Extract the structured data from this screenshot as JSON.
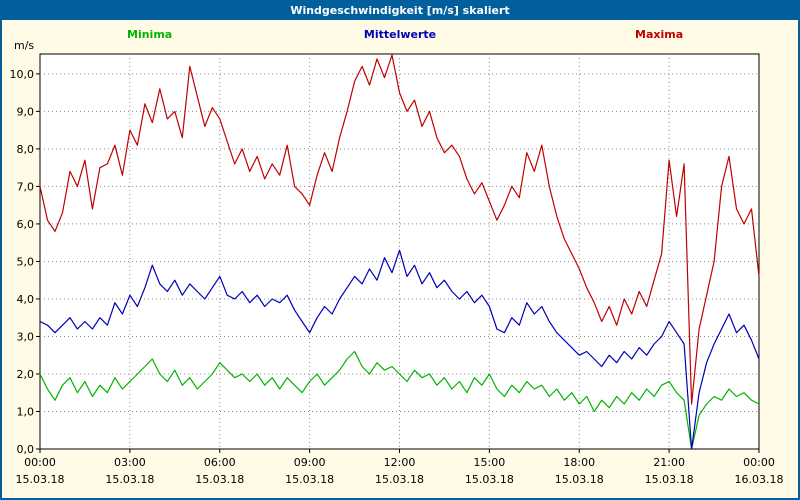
{
  "window": {
    "title": "Windgeschwindigkeit [m/s] skaliert"
  },
  "unit_label": "m/s",
  "colors": {
    "header_bg": "#005f9c",
    "page_bg": "#fffbe6",
    "plot_bg": "#ffffff",
    "grid": "#8c8c8c",
    "axis": "#000000",
    "minima": "#00b400",
    "mittelwerte": "#0000b8",
    "maxima": "#c00000"
  },
  "chart_data": {
    "type": "line",
    "title": "Windgeschwindigkeit [m/s] skaliert",
    "ylabel": "m/s",
    "xlabel": "",
    "ylim": [
      0,
      10.53
    ],
    "x_range_hours": [
      0,
      24
    ],
    "x_step_hours": 0.25,
    "grid": "dotted",
    "legend_position": "top",
    "y_ticks": {
      "values": [
        0,
        1,
        2,
        3,
        4,
        5,
        6,
        7,
        8,
        9,
        10
      ],
      "labels": [
        "0,0",
        "1,0",
        "2,0",
        "3,0",
        "4,0",
        "5,0",
        "6,0",
        "7,0",
        "8,0",
        "9,0",
        "10,0"
      ]
    },
    "x_ticks": [
      {
        "hour": 0,
        "time": "00:00",
        "date": "15.03.18"
      },
      {
        "hour": 3,
        "time": "03:00",
        "date": "15.03.18"
      },
      {
        "hour": 6,
        "time": "06:00",
        "date": "15.03.18"
      },
      {
        "hour": 9,
        "time": "09:00",
        "date": "15.03.18"
      },
      {
        "hour": 12,
        "time": "12:00",
        "date": "15.03.18"
      },
      {
        "hour": 15,
        "time": "15:00",
        "date": "15.03.18"
      },
      {
        "hour": 18,
        "time": "18:00",
        "date": "15.03.18"
      },
      {
        "hour": 21,
        "time": "21:00",
        "date": "15.03.18"
      },
      {
        "hour": 24,
        "time": "00:00",
        "date": "16.03.18"
      }
    ],
    "series": [
      {
        "name": "Minima",
        "color": "#00b400",
        "values": [
          2.0,
          1.6,
          1.3,
          1.7,
          1.9,
          1.5,
          1.8,
          1.4,
          1.7,
          1.5,
          1.9,
          1.6,
          1.8,
          2.0,
          2.2,
          2.4,
          2.0,
          1.8,
          2.1,
          1.7,
          1.9,
          1.6,
          1.8,
          2.0,
          2.3,
          2.1,
          1.9,
          2.0,
          1.8,
          2.0,
          1.7,
          1.9,
          1.6,
          1.9,
          1.7,
          1.5,
          1.8,
          2.0,
          1.7,
          1.9,
          2.1,
          2.4,
          2.6,
          2.2,
          2.0,
          2.3,
          2.1,
          2.2,
          2.0,
          1.8,
          2.1,
          1.9,
          2.0,
          1.7,
          1.9,
          1.6,
          1.8,
          1.5,
          1.9,
          1.7,
          2.0,
          1.6,
          1.4,
          1.7,
          1.5,
          1.8,
          1.6,
          1.7,
          1.4,
          1.6,
          1.3,
          1.5,
          1.2,
          1.4,
          1.0,
          1.3,
          1.1,
          1.4,
          1.2,
          1.5,
          1.3,
          1.6,
          1.4,
          1.7,
          1.8,
          1.5,
          1.3,
          0.0,
          0.9,
          1.2,
          1.4,
          1.3,
          1.6,
          1.4,
          1.5,
          1.3,
          1.2
        ]
      },
      {
        "name": "Mittelwerte",
        "color": "#0000b8",
        "values": [
          3.4,
          3.3,
          3.1,
          3.3,
          3.5,
          3.2,
          3.4,
          3.2,
          3.5,
          3.3,
          3.9,
          3.6,
          4.1,
          3.8,
          4.3,
          4.9,
          4.4,
          4.2,
          4.5,
          4.1,
          4.4,
          4.2,
          4.0,
          4.3,
          4.6,
          4.1,
          4.0,
          4.2,
          3.9,
          4.1,
          3.8,
          4.0,
          3.9,
          4.1,
          3.7,
          3.4,
          3.1,
          3.5,
          3.8,
          3.6,
          4.0,
          4.3,
          4.6,
          4.4,
          4.8,
          4.5,
          5.1,
          4.7,
          5.3,
          4.6,
          4.9,
          4.4,
          4.7,
          4.3,
          4.5,
          4.2,
          4.0,
          4.2,
          3.9,
          4.1,
          3.8,
          3.2,
          3.1,
          3.5,
          3.3,
          3.9,
          3.6,
          3.8,
          3.4,
          3.1,
          2.9,
          2.7,
          2.5,
          2.6,
          2.4,
          2.2,
          2.5,
          2.3,
          2.6,
          2.4,
          2.7,
          2.5,
          2.8,
          3.0,
          3.4,
          3.1,
          2.8,
          0.0,
          1.5,
          2.3,
          2.8,
          3.2,
          3.6,
          3.1,
          3.3,
          2.9,
          2.4
        ]
      },
      {
        "name": "Maxima",
        "color": "#c00000",
        "values": [
          7.0,
          6.1,
          5.8,
          6.3,
          7.4,
          7.0,
          7.7,
          6.4,
          7.5,
          7.6,
          8.1,
          7.3,
          8.5,
          8.1,
          9.2,
          8.7,
          9.6,
          8.8,
          9.0,
          8.3,
          10.2,
          9.4,
          8.6,
          9.1,
          8.8,
          8.2,
          7.6,
          8.0,
          7.4,
          7.8,
          7.2,
          7.6,
          7.3,
          8.1,
          7.0,
          6.8,
          6.5,
          7.3,
          7.9,
          7.4,
          8.3,
          9.0,
          9.8,
          10.2,
          9.7,
          10.4,
          9.9,
          10.5,
          9.5,
          9.0,
          9.3,
          8.6,
          9.0,
          8.3,
          7.9,
          8.1,
          7.8,
          7.2,
          6.8,
          7.1,
          6.6,
          6.1,
          6.5,
          7.0,
          6.7,
          7.9,
          7.4,
          8.1,
          7.0,
          6.2,
          5.6,
          5.2,
          4.8,
          4.3,
          3.9,
          3.4,
          3.8,
          3.3,
          4.0,
          3.6,
          4.2,
          3.8,
          4.5,
          5.2,
          7.7,
          6.2,
          7.6,
          1.2,
          3.2,
          4.1,
          5.0,
          7.0,
          7.8,
          6.4,
          6.0,
          6.4,
          4.6
        ]
      }
    ]
  }
}
